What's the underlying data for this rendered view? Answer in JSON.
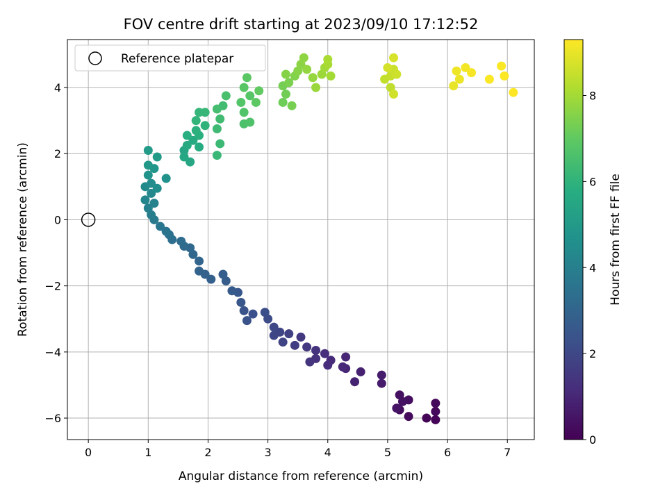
{
  "chart_data": {
    "type": "scatter",
    "title": "FOV centre drift starting at 2023/09/10 17:12:52",
    "xlabel": "Angular distance from reference (arcmin)",
    "ylabel": "Rotation from reference (arcmin)",
    "xlim": [
      -0.35,
      7.45
    ],
    "ylim": [
      -6.65,
      5.45
    ],
    "xticks": [
      0,
      1,
      2,
      3,
      4,
      5,
      6,
      7
    ],
    "yticks": [
      -6,
      -4,
      -2,
      0,
      2,
      4
    ],
    "grid": true,
    "colormap": "viridis",
    "colorbar": {
      "label": "Hours from first FF file",
      "min": 0,
      "max": 9.3,
      "ticks": [
        0,
        2,
        4,
        6,
        8
      ]
    },
    "legend": {
      "position": "top-left",
      "entries": [
        "Reference platepar"
      ]
    },
    "reference_point": {
      "x": 0,
      "y": 0
    },
    "series": [
      {
        "points": [
          [
            5.8,
            -6.05,
            0.05
          ],
          [
            5.65,
            -6.0,
            0.1
          ],
          [
            5.8,
            -5.8,
            0.15
          ],
          [
            5.8,
            -5.55,
            0.2
          ],
          [
            5.35,
            -5.95,
            0.25
          ],
          [
            5.2,
            -5.75,
            0.3
          ],
          [
            5.35,
            -5.45,
            0.35
          ],
          [
            5.2,
            -5.3,
            0.4
          ],
          [
            5.25,
            -5.5,
            0.45
          ],
          [
            5.15,
            -5.7,
            0.5
          ],
          [
            4.9,
            -4.95,
            0.7
          ],
          [
            4.9,
            -4.7,
            0.75
          ],
          [
            4.55,
            -4.6,
            0.85
          ],
          [
            4.45,
            -4.9,
            0.9
          ],
          [
            4.3,
            -4.5,
            0.95
          ],
          [
            4.3,
            -4.15,
            1.0
          ],
          [
            4.25,
            -4.45,
            1.05
          ],
          [
            4.05,
            -4.25,
            1.1
          ],
          [
            4.0,
            -4.4,
            1.15
          ],
          [
            3.95,
            -4.05,
            1.2
          ],
          [
            3.8,
            -4.2,
            1.3
          ],
          [
            3.8,
            -3.95,
            1.35
          ],
          [
            3.7,
            -4.3,
            1.4
          ],
          [
            3.65,
            -3.85,
            1.5
          ],
          [
            3.55,
            -3.55,
            1.55
          ],
          [
            3.45,
            -3.8,
            1.65
          ],
          [
            3.35,
            -3.45,
            1.75
          ],
          [
            3.25,
            -3.7,
            1.85
          ],
          [
            3.2,
            -3.4,
            1.9
          ],
          [
            3.1,
            -3.5,
            1.95
          ],
          [
            3.1,
            -3.25,
            2.0
          ],
          [
            3.0,
            -3.0,
            2.1
          ],
          [
            2.95,
            -2.8,
            2.2
          ],
          [
            2.75,
            -2.85,
            2.3
          ],
          [
            2.65,
            -3.05,
            2.35
          ],
          [
            2.6,
            -2.75,
            2.4
          ],
          [
            2.55,
            -2.5,
            2.5
          ],
          [
            2.5,
            -2.2,
            2.55
          ],
          [
            2.4,
            -2.15,
            2.6
          ],
          [
            2.3,
            -1.85,
            2.7
          ],
          [
            2.25,
            -1.65,
            2.75
          ],
          [
            2.05,
            -1.8,
            2.85
          ],
          [
            1.95,
            -1.65,
            2.9
          ],
          [
            1.85,
            -1.55,
            2.95
          ],
          [
            1.85,
            -1.25,
            3.0
          ],
          [
            1.75,
            -1.05,
            3.1
          ],
          [
            1.7,
            -0.85,
            3.15
          ],
          [
            1.6,
            -0.8,
            3.2
          ],
          [
            1.55,
            -0.65,
            3.3
          ],
          [
            1.4,
            -0.6,
            3.35
          ],
          [
            1.35,
            -0.45,
            3.45
          ],
          [
            1.3,
            -0.35,
            3.55
          ],
          [
            1.2,
            -0.2,
            3.65
          ],
          [
            1.1,
            0.0,
            3.8
          ],
          [
            1.05,
            0.15,
            3.9
          ],
          [
            1.0,
            0.35,
            4.0
          ],
          [
            1.1,
            0.5,
            4.1
          ],
          [
            0.95,
            0.6,
            4.2
          ],
          [
            1.05,
            0.8,
            4.3
          ],
          [
            0.95,
            1.0,
            4.4
          ],
          [
            1.05,
            1.1,
            4.5
          ],
          [
            1.15,
            0.95,
            4.55
          ],
          [
            1.3,
            1.25,
            4.65
          ],
          [
            1.0,
            1.35,
            4.75
          ],
          [
            1.1,
            1.55,
            4.85
          ],
          [
            1.0,
            1.65,
            4.95
          ],
          [
            1.15,
            1.9,
            5.0
          ],
          [
            1.0,
            2.1,
            5.05
          ],
          [
            1.6,
            2.1,
            5.4
          ],
          [
            1.7,
            1.75,
            5.5
          ],
          [
            1.6,
            1.9,
            5.55
          ],
          [
            1.65,
            2.25,
            5.6
          ],
          [
            1.75,
            2.4,
            5.65
          ],
          [
            1.85,
            2.2,
            5.7
          ],
          [
            1.65,
            2.55,
            5.8
          ],
          [
            1.85,
            2.55,
            5.85
          ],
          [
            1.8,
            2.7,
            5.9
          ],
          [
            1.95,
            2.85,
            6.0
          ],
          [
            1.8,
            3.0,
            6.05
          ],
          [
            1.85,
            3.25,
            6.1
          ],
          [
            1.95,
            3.25,
            6.15
          ],
          [
            2.15,
            1.95,
            6.2
          ],
          [
            2.2,
            2.3,
            6.25
          ],
          [
            2.15,
            2.75,
            6.3
          ],
          [
            2.2,
            3.05,
            6.35
          ],
          [
            2.25,
            3.45,
            6.4
          ],
          [
            2.15,
            3.35,
            6.45
          ],
          [
            2.3,
            3.75,
            6.55
          ],
          [
            2.6,
            2.9,
            6.6
          ],
          [
            2.7,
            2.95,
            6.65
          ],
          [
            2.6,
            3.25,
            6.7
          ],
          [
            2.55,
            3.55,
            6.75
          ],
          [
            2.7,
            3.75,
            6.8
          ],
          [
            2.6,
            4.0,
            6.85
          ],
          [
            2.65,
            4.3,
            6.9
          ],
          [
            2.8,
            3.55,
            6.95
          ],
          [
            2.85,
            3.9,
            7.0
          ],
          [
            3.25,
            3.55,
            7.2
          ],
          [
            3.3,
            3.8,
            7.25
          ],
          [
            3.25,
            4.05,
            7.3
          ],
          [
            3.4,
            3.45,
            7.35
          ],
          [
            3.35,
            4.15,
            7.4
          ],
          [
            3.45,
            4.35,
            7.5
          ],
          [
            3.3,
            4.4,
            7.55
          ],
          [
            3.5,
            4.5,
            7.6
          ],
          [
            3.55,
            4.7,
            7.65
          ],
          [
            3.6,
            4.9,
            7.7
          ],
          [
            3.65,
            4.55,
            7.75
          ],
          [
            3.75,
            4.3,
            7.8
          ],
          [
            3.8,
            4.0,
            7.85
          ],
          [
            3.9,
            4.4,
            7.9
          ],
          [
            3.95,
            4.6,
            7.95
          ],
          [
            4.05,
            4.35,
            8.0
          ],
          [
            4.0,
            4.7,
            8.05
          ],
          [
            4.0,
            4.85,
            8.1
          ],
          [
            5.05,
            4.0,
            8.4
          ],
          [
            4.95,
            4.25,
            8.45
          ],
          [
            5.05,
            4.35,
            8.5
          ],
          [
            5.1,
            4.55,
            8.55
          ],
          [
            5.15,
            4.4,
            8.6
          ],
          [
            5.1,
            3.8,
            8.65
          ],
          [
            5.0,
            4.6,
            8.7
          ],
          [
            5.1,
            4.9,
            8.75
          ],
          [
            6.1,
            4.05,
            9.0
          ],
          [
            6.2,
            4.25,
            9.05
          ],
          [
            6.15,
            4.5,
            9.1
          ],
          [
            6.3,
            4.6,
            9.15
          ],
          [
            6.4,
            4.45,
            9.2
          ],
          [
            6.7,
            4.25,
            9.25
          ],
          [
            6.9,
            4.65,
            9.25
          ],
          [
            6.95,
            4.35,
            9.28
          ],
          [
            7.1,
            3.85,
            9.3
          ]
        ]
      }
    ]
  }
}
